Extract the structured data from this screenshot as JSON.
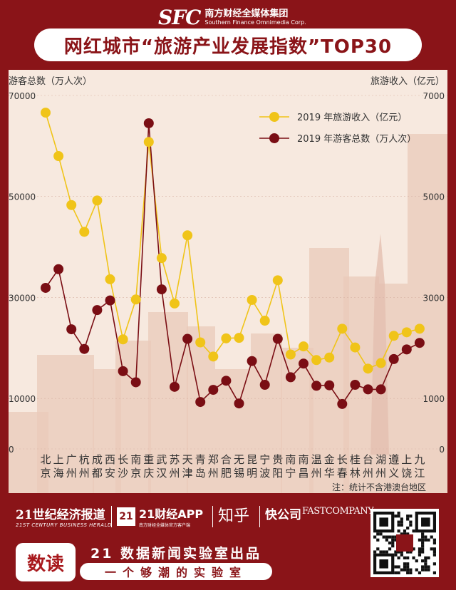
{
  "header": {
    "logo_mark": "SFC",
    "logo_cn": "南方财经全媒体集团",
    "logo_en": "Southern Finance Omnimedia Corp.",
    "title": "网红城市“旅游产业发展指数”TOP30"
  },
  "chart_data": {
    "type": "line",
    "left_axis_label": "游客总数（万人次）",
    "right_axis_label": "旅游收入（亿元）",
    "left_ticks": [
      "70000",
      "50000",
      "30000",
      "10000",
      "0"
    ],
    "right_ticks": [
      "7000",
      "5000",
      "3000",
      "1000",
      "0"
    ],
    "left_ylim": [
      0,
      70000
    ],
    "right_ylim": [
      0,
      7000
    ],
    "note": "注：统计不含港澳台地区",
    "legend_position": "top-right",
    "categories": [
      "北京",
      "上海",
      "广州",
      "杭州",
      "成都",
      "西安",
      "长沙",
      "南京",
      "重庆",
      "武汉",
      "苏州",
      "天津",
      "青岛",
      "郑州",
      "合肥",
      "无锡",
      "昆明",
      "宁波",
      "贵阳",
      "南宁",
      "南昌",
      "温州",
      "金华",
      "长春",
      "桂林",
      "台州",
      "湖州",
      "遵义",
      "上饶",
      "九江"
    ],
    "series": [
      {
        "name": "2019 年旅游收入（亿元）",
        "axis": "right",
        "color": "#f0c419",
        "values": [
          6660,
          5800,
          4830,
          4300,
          4920,
          3360,
          2170,
          2960,
          6080,
          3780,
          2880,
          4230,
          2110,
          1830,
          2190,
          2200,
          2950,
          2540,
          3340,
          1870,
          2030,
          1760,
          1810,
          2380,
          2010,
          1590,
          1700,
          2240,
          2310,
          2380
        ]
      },
      {
        "name": "2019 年游客总数（万人次）",
        "axis": "left",
        "color": "#7a0e14",
        "values": [
          31900,
          35600,
          23700,
          19800,
          27500,
          29400,
          15400,
          13200,
          64500,
          31600,
          12300,
          21800,
          9300,
          11700,
          13500,
          9000,
          17400,
          12700,
          21800,
          14200,
          16900,
          12500,
          12600,
          8900,
          12700,
          11800,
          11800,
          17800,
          19700,
          21000
        ]
      }
    ]
  },
  "footer": {
    "b21_cn": "21世纪经济报道",
    "b21_en": "21ST CENTURY BUSINESS HERALD",
    "app_box": "21",
    "app_name": "21财经APP",
    "app_sub": "南方财经全媒体官方客户端",
    "zhihu": "知乎",
    "kuai": "快公司",
    "fast": "FASTCOMPANY",
    "badge": "数读",
    "lab_title": "21 数据新闻实验室出品",
    "lab_sub": "一个够潮的实验室"
  },
  "colors": {
    "brand_red": "#8a1418",
    "bg": "#f7e9df",
    "income": "#f0c419",
    "visitors": "#7a0e14"
  }
}
